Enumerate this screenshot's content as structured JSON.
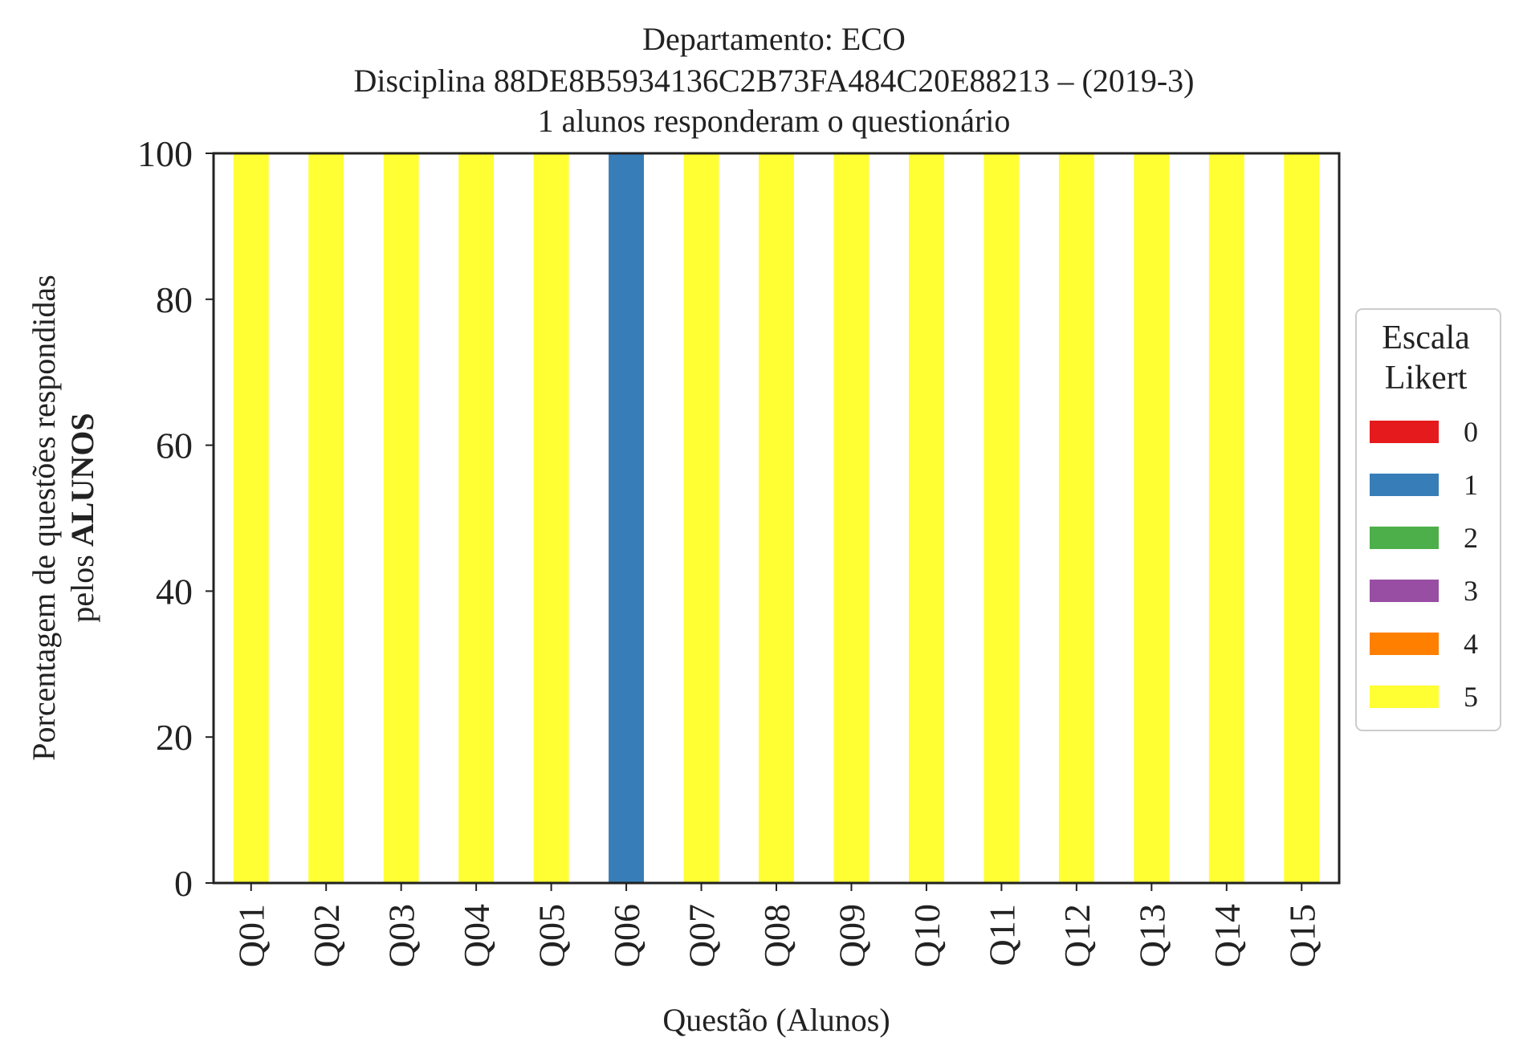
{
  "chart_data": {
    "type": "bar",
    "stacked": true,
    "title_lines": [
      "Departamento: ECO",
      "Disciplina 88DE8B5934136C2B73FA484C20E88213 – (2019-3)",
      "1 alunos responderam o questionário"
    ],
    "xlabel": "Questão (Alunos)",
    "ylabel_line1": "Porcentagem de questões respondidas",
    "ylabel_line2_prefix": "pelos ",
    "ylabel_line2_bold": "ALUNOS",
    "ylim": [
      0,
      100
    ],
    "yticks": [
      "0",
      "20",
      "40",
      "60",
      "80",
      "100"
    ],
    "grid": false,
    "legend_position": "right",
    "legend_title_lines": [
      "Escala",
      "Likert"
    ],
    "categories": [
      "Q01",
      "Q02",
      "Q03",
      "Q04",
      "Q05",
      "Q06",
      "Q07",
      "Q08",
      "Q09",
      "Q10",
      "Q11",
      "Q12",
      "Q13",
      "Q14",
      "Q15"
    ],
    "series": [
      {
        "name": "0",
        "color": "#e41a1c",
        "values": [
          0,
          0,
          0,
          0,
          0,
          0,
          0,
          0,
          0,
          0,
          0,
          0,
          0,
          0,
          0
        ]
      },
      {
        "name": "1",
        "color": "#377eb8",
        "values": [
          0,
          0,
          0,
          0,
          0,
          100,
          0,
          0,
          0,
          0,
          0,
          0,
          0,
          0,
          0
        ]
      },
      {
        "name": "2",
        "color": "#4daf4a",
        "values": [
          0,
          0,
          0,
          0,
          0,
          0,
          0,
          0,
          0,
          0,
          0,
          0,
          0,
          0,
          0
        ]
      },
      {
        "name": "3",
        "color": "#984ea3",
        "values": [
          0,
          0,
          0,
          0,
          0,
          0,
          0,
          0,
          0,
          0,
          0,
          0,
          0,
          0,
          0
        ]
      },
      {
        "name": "4",
        "color": "#ff7f00",
        "values": [
          0,
          0,
          0,
          0,
          0,
          0,
          0,
          0,
          0,
          0,
          0,
          0,
          0,
          0,
          0
        ]
      },
      {
        "name": "5",
        "color": "#ffff33",
        "values": [
          100,
          100,
          100,
          100,
          100,
          0,
          100,
          100,
          100,
          100,
          100,
          100,
          100,
          100,
          100
        ]
      }
    ]
  }
}
